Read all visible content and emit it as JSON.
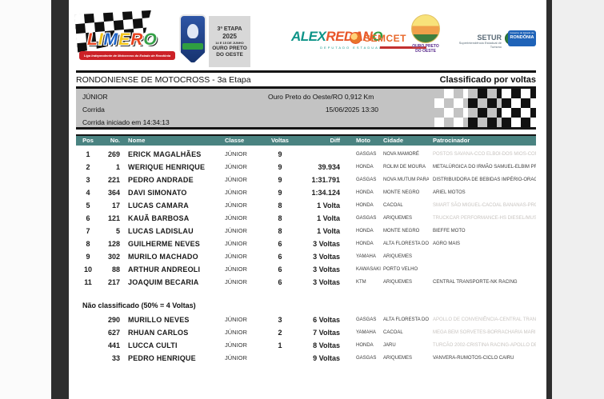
{
  "header": {
    "limero": {
      "word": "LIMERO",
      "letter_colors": [
        "#e8431f",
        "#f5c518",
        "#1f63c4",
        "#f5c518",
        "#e8431f",
        "#35a048"
      ],
      "banner": "Liga Independente de Motocross do Estado de Rondônia"
    },
    "etapa_panel": {
      "line1": "3ª ETAPA",
      "line2": "2025",
      "line3": "14 E 15 DE JUNHO",
      "line4": "OURO PRETO",
      "line5": "DO OESTE"
    },
    "alex_redano": {
      "first": "ALEX",
      "mid": "REDAN",
      "last_o": "O",
      "subtitle": "DEPUTADO ESTADUAL"
    },
    "semcet": {
      "name": "SEMCET"
    },
    "tourism": {
      "name_line1": "OURO PRETO",
      "name_line2": "DO OESTE"
    },
    "setur": {
      "name": "SETUR",
      "subtitle": "Superintendência Estadual de Turismo"
    },
    "rondonia": {
      "gov": "Governo do Estado de",
      "name": "RONDÔNIA"
    }
  },
  "title_bar": {
    "left": "RONDONIENSE DE MOTOCROSS - 3a Etapa",
    "right": "Classificado por voltas"
  },
  "info_box": {
    "category": "JÚNIOR",
    "track": "Ouro Preto do Oeste/RO 0,912 Km",
    "race_label": "Corrida",
    "schedule": "15/06/2025 13:30",
    "started": "Corrida iniciado em 14:34:13"
  },
  "results": {
    "columns": [
      "Pos",
      "No.",
      "Nome",
      "Classe",
      "Voltas",
      "Diff",
      "Moto",
      "Cidade",
      "Patrocinador"
    ],
    "rows": [
      {
        "pos": "1",
        "no": "269",
        "nome": "ERICK MAGALHÃES",
        "classe": "JÚNIOR",
        "voltas": "9",
        "diff": "",
        "moto": "GASGAS",
        "cidade": "NOVA MAMORÉ",
        "patro": "POSTOS SAVANA-CCO ELBOI-DOS MIOS-COM CICLO",
        "faded": true
      },
      {
        "pos": "2",
        "no": "1",
        "nome": "WERIQUE HENRIQUE",
        "classe": "JÚNIOR",
        "voltas": "9",
        "diff": "39.934",
        "moto": "HONDA",
        "cidade": "ROLIM DE MOURA",
        "patro": "METALÚRGICA DO IRMÃO SAMUEL-ELBIM PREPARAÇ",
        "faded": false
      },
      {
        "pos": "3",
        "no": "221",
        "nome": "PEDRO ANDRADE",
        "classe": "JÚNIOR",
        "voltas": "9",
        "diff": "1:31.791",
        "moto": "GASGAS",
        "cidade": "NOVA MUTUM PARANÁ",
        "patro": "DISTRIBUIDORA DE BEBIDAS IMPÉRIO-ORAGA VETÓ",
        "faded": false
      },
      {
        "pos": "4",
        "no": "364",
        "nome": "DAVI SIMONATO",
        "classe": "JÚNIOR",
        "voltas": "9",
        "diff": "1:34.124",
        "moto": "HONDA",
        "cidade": "MONTE NEGRO",
        "patro": "ARIEL MOTOS",
        "faded": false
      },
      {
        "pos": "5",
        "no": "17",
        "nome": "LUCAS CAMARA",
        "classe": "JÚNIOR",
        "voltas": "8",
        "diff": "1 Volta",
        "moto": "HONDA",
        "cidade": "CACOAL",
        "patro": "SMART SÃO MIGUEL-CACOAL BANANAS-PRO FÓRMUL",
        "faded": true
      },
      {
        "pos": "6",
        "no": "121",
        "nome": "KAUÃ BARBOSA",
        "classe": "JÚNIOR",
        "voltas": "8",
        "diff": "1 Volta",
        "moto": "GASGAS",
        "cidade": "ARIQUEMES",
        "patro": "TRUCKCAR PERFORMANCE-HS DIESEL/MUSTELO STO",
        "faded": true
      },
      {
        "pos": "7",
        "no": "5",
        "nome": "LUCAS LADISLAU",
        "classe": "JÚNIOR",
        "voltas": "8",
        "diff": "1 Volta",
        "moto": "HONDA",
        "cidade": "MONTE NEGRO",
        "patro": "BIEFFE MOTO",
        "faded": false
      },
      {
        "pos": "8",
        "no": "128",
        "nome": "GUILHERME NEVES",
        "classe": "JÚNIOR",
        "voltas": "6",
        "diff": "3 Voltas",
        "moto": "HONDA",
        "cidade": "ALTA FLORESTA DO O",
        "patro": "AGRO MAIS",
        "faded": false
      },
      {
        "pos": "9",
        "no": "302",
        "nome": "MURILO MACHADO",
        "classe": "JÚNIOR",
        "voltas": "6",
        "diff": "3 Voltas",
        "moto": "YAMAHA",
        "cidade": "ARIQUEMES",
        "patro": "",
        "faded": false
      },
      {
        "pos": "10",
        "no": "88",
        "nome": "ARTHUR ANDREOLI",
        "classe": "JÚNIOR",
        "voltas": "6",
        "diff": "3 Voltas",
        "moto": "KAWASAKI",
        "cidade": "PORTO VELHO",
        "patro": "",
        "faded": false
      },
      {
        "pos": "11",
        "no": "217",
        "nome": "JOAQUIM BECARIA",
        "classe": "JÚNIOR",
        "voltas": "6",
        "diff": "3 Voltas",
        "moto": "KTM",
        "cidade": "ARIQUEMES",
        "patro": "CENTRAL TRANSPORTE-NK RACING",
        "faded": false
      }
    ],
    "unclassified_title": "Não classificado (50% = 4 Voltas)",
    "unclassified_rows": [
      {
        "pos": "",
        "no": "290",
        "nome": "MURILLO NEVES",
        "classe": "JÚNIOR",
        "voltas": "3",
        "diff": "6 Voltas",
        "moto": "GASGAS",
        "cidade": "ALTA FLORESTA DO O",
        "patro": "APOLLO DE CONVENIÊNCIA-CENTRAL TRANSPORTE E",
        "faded": true
      },
      {
        "pos": "",
        "no": "627",
        "nome": "RHUAN CARLOS",
        "classe": "JÚNIOR",
        "voltas": "2",
        "diff": "7 Voltas",
        "moto": "YAMAHA",
        "cidade": "CACOAL",
        "patro": "MEGA BEM SORVETES-BORRACHARIA MARINGÁ-IMPE",
        "faded": true
      },
      {
        "pos": "",
        "no": "441",
        "nome": "LUCCA CULTI",
        "classe": "JÚNIOR",
        "voltas": "1",
        "diff": "8 Voltas",
        "moto": "HONDA",
        "cidade": "JARU",
        "patro": "TURCÃO 2002-CRISTINA RACING-APOLLO DE CONVE",
        "faded": true
      },
      {
        "pos": "",
        "no": "33",
        "nome": "PEDRO HENRIQUE",
        "classe": "JÚNIOR",
        "voltas": "",
        "diff": "9 Voltas",
        "moto": "GASGAS",
        "cidade": "ARIQUEMES",
        "patro": "VANVERA-RUMOTOS-CICLO CAIRU",
        "faded": false
      }
    ]
  },
  "colors": {
    "table_header_bg": "#4a8381",
    "info_box_bg": "#c3c3c3",
    "rule": "#141414"
  }
}
